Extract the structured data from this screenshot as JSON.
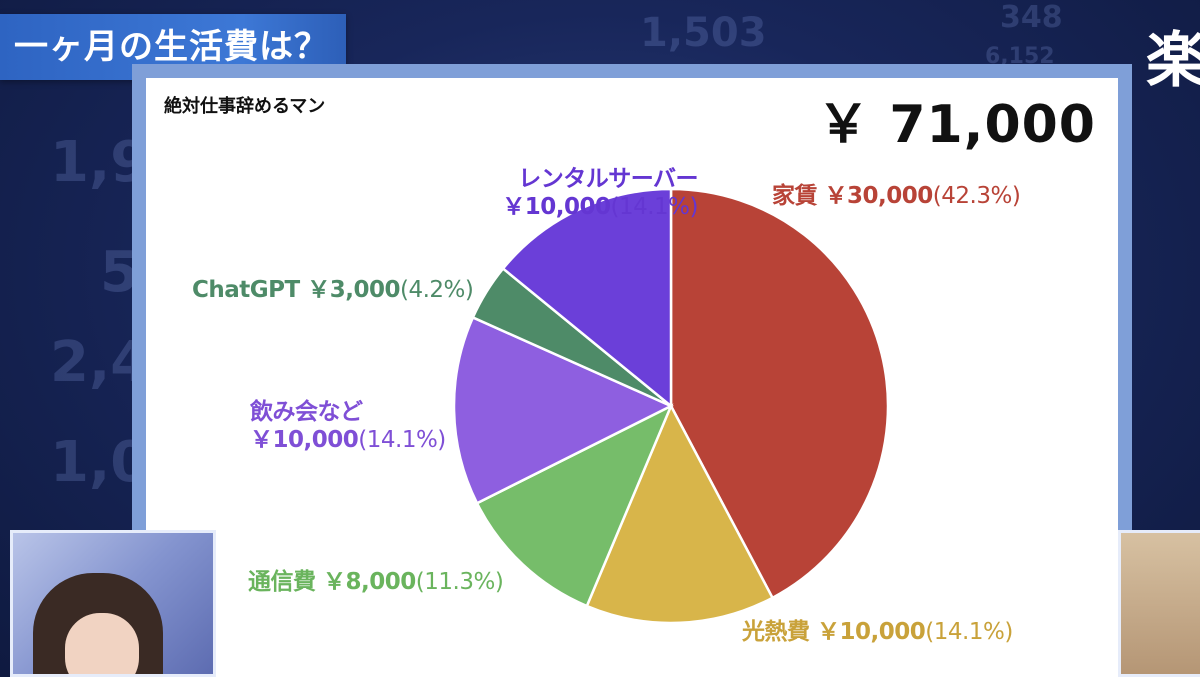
{
  "banner": {
    "title": "一ヶ月の生活費は？"
  },
  "corner_glyph": "楽",
  "background_numbers": [
    "1,503",
    "348",
    "6,152",
    "1,9",
    "5",
    "2,4",
    "1,0"
  ],
  "panel": {
    "person": "絶対仕事辞めるマン",
    "total": "￥ 71,000"
  },
  "chart_data": {
    "type": "pie",
    "title": "",
    "total": 71000,
    "currency": "￥",
    "slices": [
      {
        "name": "家賃",
        "value": 30000,
        "value_label": "￥30,000",
        "percent": 42.3,
        "percent_label": "(42.3%)",
        "color": "#b84337"
      },
      {
        "name": "光熱費",
        "value": 10000,
        "value_label": "￥10,000",
        "percent": 14.1,
        "percent_label": "(14.1%)",
        "color": "#d8b54a"
      },
      {
        "name": "通信費",
        "value": 8000,
        "value_label": "￥8,000",
        "percent": 11.3,
        "percent_label": "(11.3%)",
        "color": "#76bd6a"
      },
      {
        "name": "飲み会など",
        "value": 10000,
        "value_label": "￥10,000",
        "percent": 14.1,
        "percent_label": "(14.1%)",
        "color": "#8e5fe0"
      },
      {
        "name": "ChatGPT",
        "value": 3000,
        "value_label": "￥3,000",
        "percent": 4.2,
        "percent_label": "(4.2%)",
        "color": "#4e8b68"
      },
      {
        "name": "レンタルサーバー",
        "value": 10000,
        "value_label": "￥10,000",
        "percent": 14.1,
        "percent_label": "(14.1%)",
        "color": "#6b3fd9"
      }
    ],
    "label_colors": {
      "家賃": "#b84337",
      "光熱費": "#c9a23a",
      "通信費": "#6ab45d",
      "飲み会など": "#7f4fd6",
      "ChatGPT": "#4e8b68",
      "レンタルサーバー": "#6436d2"
    }
  }
}
